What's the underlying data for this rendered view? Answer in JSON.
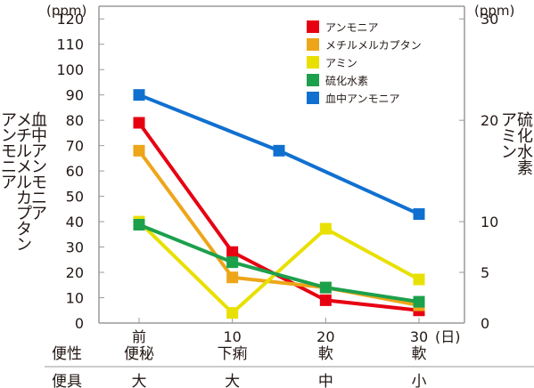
{
  "chart_data": {
    "type": "line",
    "x": [
      0,
      10,
      20,
      30
    ],
    "x_unit": "(日)",
    "x_tick_labels": [
      "前",
      "10",
      "20",
      "30"
    ],
    "y_left": {
      "unit": "(ppm)",
      "title_lines": [
        "血中アンモニア",
        "メチルメルカプタン",
        "アンモニア"
      ],
      "lim": [
        0,
        125
      ],
      "ticks": [
        "0",
        "10",
        "20",
        "30",
        "40",
        "50",
        "60",
        "70",
        "80",
        "90",
        "100",
        "110",
        "120"
      ]
    },
    "y_right": {
      "unit": "(ppm)",
      "title_lines": [
        "硫化水素",
        "アミン"
      ],
      "lim": [
        0,
        31.25
      ],
      "ticks": [
        "0",
        "5",
        "10",
        "20",
        "30"
      ]
    },
    "series": [
      {
        "name": "アンモニア",
        "color": "#e60012",
        "axis": "left",
        "points": [
          [
            0,
            79
          ],
          [
            10,
            28
          ],
          [
            20,
            9
          ],
          [
            30,
            5
          ]
        ]
      },
      {
        "name": "メチルメルカプタン",
        "color": "#eda61a",
        "axis": "left",
        "points": [
          [
            0,
            68
          ],
          [
            10,
            18
          ],
          [
            20,
            14
          ],
          [
            30,
            7
          ]
        ]
      },
      {
        "name": "アミン",
        "color": "#e8e000",
        "axis": "right",
        "points": [
          [
            0,
            10
          ],
          [
            10,
            1
          ],
          [
            20,
            9.3
          ],
          [
            30,
            4.3
          ]
        ]
      },
      {
        "name": "硫化水素",
        "color": "#1ca04c",
        "axis": "right",
        "points": [
          [
            0,
            9.7
          ],
          [
            10,
            6
          ],
          [
            20,
            3.5
          ],
          [
            30,
            2.1
          ]
        ]
      },
      {
        "name": "血中アンモニア",
        "color": "#1070d0",
        "axis": "left",
        "points": [
          [
            0,
            90
          ],
          [
            15,
            68
          ],
          [
            30,
            43
          ]
        ]
      }
    ],
    "legend_position": "top-right"
  },
  "rows": [
    {
      "label": "便性",
      "values": [
        "便秘",
        "下痢",
        "軟",
        "軟"
      ]
    },
    {
      "label": "便具",
      "values": [
        "大",
        "大",
        "中",
        "小"
      ]
    }
  ]
}
